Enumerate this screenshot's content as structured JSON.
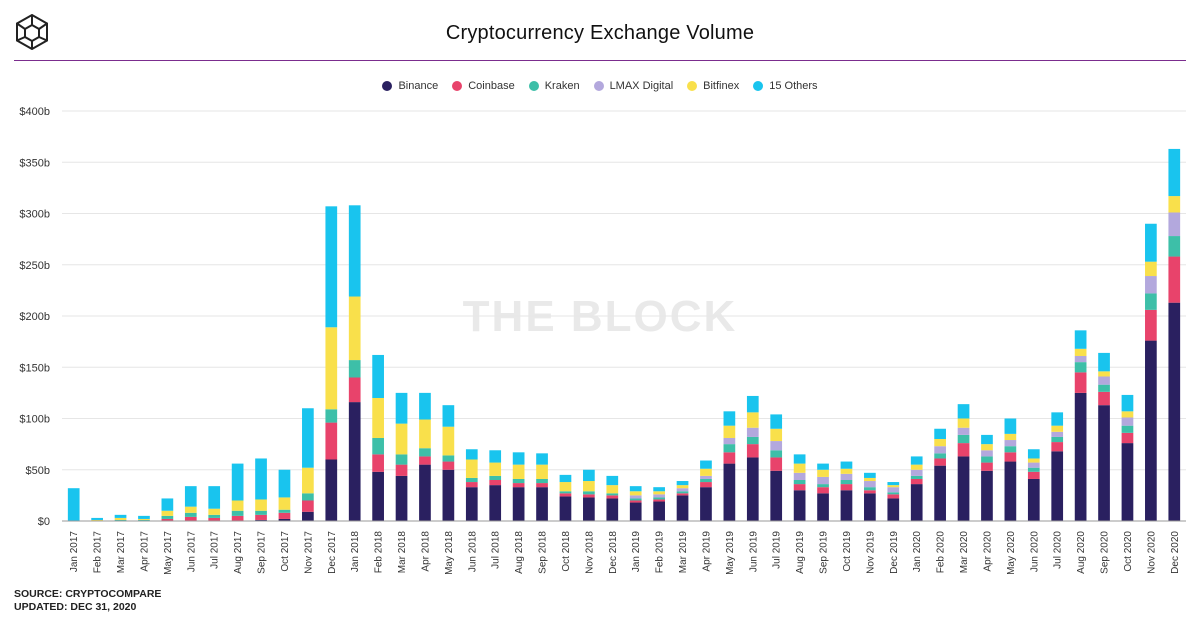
{
  "title": "Cryptocurrency Exchange Volume",
  "watermark": "THE BLOCK",
  "source": {
    "line1": "SOURCE: CRYPTOCOMPARE",
    "line2": "UPDATED: DEC 31, 2020"
  },
  "colors": {
    "accent_rule": "#7b2d8e",
    "grid": "#e6e6e6"
  },
  "chart_data": {
    "type": "bar",
    "stacked": true,
    "title": "Cryptocurrency Exchange Volume",
    "ylim": [
      0,
      400
    ],
    "yticks": [
      "$0",
      "$50b",
      "$100b",
      "$150b",
      "$200b",
      "$250b",
      "$300b",
      "$350b",
      "$400b"
    ],
    "ytick_values": [
      0,
      50,
      100,
      150,
      200,
      250,
      300,
      350,
      400
    ],
    "grid": true,
    "legend_position": "top-center",
    "categories": [
      "Jan 2017",
      "Feb 2017",
      "Mar 2017",
      "Apr 2017",
      "May 2017",
      "Jun 2017",
      "Jul 2017",
      "Aug 2017",
      "Sep 2017",
      "Oct 2017",
      "Nov 2017",
      "Dec 2017",
      "Jan 2018",
      "Feb 2018",
      "Mar 2018",
      "Apr 2018",
      "May 2018",
      "Jun 2018",
      "Jul 2018",
      "Aug 2018",
      "Sep 2018",
      "Oct 2018",
      "Nov 2018",
      "Dec 2018",
      "Jan 2019",
      "Feb 2019",
      "Mar 2019",
      "Apr 2019",
      "May 2019",
      "Jun 2019",
      "Jul 2019",
      "Aug 2019",
      "Sep 2019",
      "Oct 2019",
      "Nov 2019",
      "Dec 2019",
      "Jan 2020",
      "Feb 2020",
      "Mar 2020",
      "Apr 2020",
      "May 2020",
      "Jun 2020",
      "Jul 2020",
      "Aug 2020",
      "Sep 2020",
      "Oct 2020",
      "Nov 2020",
      "Dec 2020"
    ],
    "series": [
      {
        "name": "Binance",
        "color": "#2a2060",
        "values": [
          0,
          0,
          0,
          0,
          0,
          0,
          0,
          0,
          1,
          2,
          9,
          60,
          116,
          48,
          44,
          55,
          50,
          33,
          35,
          33,
          33,
          24,
          23,
          22,
          18,
          19,
          25,
          33,
          56,
          62,
          49,
          30,
          27,
          30,
          27,
          22,
          36,
          54,
          63,
          49,
          58,
          41,
          68,
          125,
          113,
          76,
          176,
          213
        ]
      },
      {
        "name": "Coinbase",
        "color": "#e8436b",
        "values": [
          0,
          0,
          0,
          0,
          2,
          4,
          3,
          5,
          5,
          6,
          11,
          36,
          24,
          17,
          11,
          8,
          8,
          5,
          5,
          4,
          4,
          3,
          3,
          3,
          2,
          2,
          2,
          5,
          11,
          13,
          13,
          6,
          6,
          6,
          3,
          4,
          5,
          7,
          13,
          8,
          9,
          7,
          9,
          20,
          13,
          10,
          30,
          45
        ]
      },
      {
        "name": "Kraken",
        "color": "#3dbfa8",
        "values": [
          0,
          0,
          1,
          1,
          3,
          4,
          3,
          5,
          4,
          3,
          7,
          13,
          17,
          16,
          10,
          8,
          6,
          4,
          4,
          4,
          4,
          2,
          3,
          2,
          2,
          2,
          2,
          3,
          8,
          7,
          7,
          4,
          3,
          4,
          3,
          2,
          3,
          5,
          8,
          6,
          6,
          4,
          5,
          10,
          7,
          7,
          16,
          20
        ]
      },
      {
        "name": "LMAX Digital",
        "color": "#b3a8dd",
        "values": [
          0,
          0,
          0,
          0,
          0,
          0,
          0,
          0,
          0,
          0,
          0,
          0,
          0,
          0,
          0,
          0,
          0,
          0,
          0,
          0,
          0,
          0,
          0,
          0,
          3,
          3,
          3,
          3,
          6,
          9,
          9,
          7,
          7,
          6,
          6,
          5,
          6,
          7,
          7,
          6,
          6,
          5,
          5,
          6,
          8,
          8,
          17,
          23
        ]
      },
      {
        "name": "Bitfinex",
        "color": "#f9e04b",
        "values": [
          0,
          1,
          2,
          1,
          5,
          6,
          6,
          10,
          11,
          12,
          25,
          80,
          62,
          39,
          30,
          28,
          28,
          18,
          13,
          14,
          14,
          9,
          10,
          8,
          4,
          3,
          3,
          7,
          12,
          15,
          12,
          9,
          7,
          5,
          3,
          2,
          5,
          7,
          9,
          6,
          6,
          4,
          6,
          7,
          5,
          6,
          14,
          16
        ]
      },
      {
        "name": "15 Others",
        "color": "#19c4ee",
        "values": [
          32,
          2,
          3,
          3,
          12,
          20,
          22,
          36,
          40,
          27,
          58,
          118,
          89,
          42,
          30,
          26,
          21,
          10,
          12,
          12,
          11,
          7,
          11,
          9,
          5,
          4,
          4,
          8,
          14,
          16,
          14,
          9,
          6,
          7,
          5,
          3,
          8,
          10,
          14,
          9,
          15,
          9,
          13,
          18,
          18,
          16,
          37,
          46
        ]
      }
    ]
  }
}
